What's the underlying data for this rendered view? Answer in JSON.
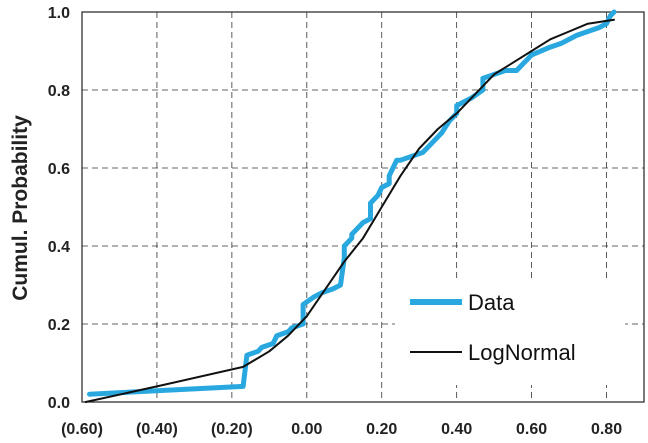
{
  "chart_data": {
    "type": "line",
    "title": "",
    "xlabel": "",
    "ylabel": "Cumul. Probability",
    "xlim": [
      -0.6,
      0.9
    ],
    "ylim": [
      0,
      1.0
    ],
    "x_ticks": [
      -0.6,
      -0.4,
      -0.2,
      0.0,
      0.2,
      0.4,
      0.6,
      0.8
    ],
    "x_tick_labels": [
      "(0.60)",
      "(0.40)",
      "(0.20)",
      "0.00",
      "0.20",
      "0.40",
      "0.60",
      "0.80"
    ],
    "y_ticks": [
      0,
      0.2,
      0.4,
      0.6,
      0.8,
      1.0
    ],
    "y_tick_labels": [
      "0.0",
      "0.2",
      "0.4",
      "0.6",
      "0.8",
      "1.0"
    ],
    "grid": true,
    "legend_position": "bottom-right",
    "series": [
      {
        "name": "Data",
        "color": "#29a8e0",
        "x": [
          -0.58,
          -0.17,
          -0.16,
          -0.13,
          -0.12,
          -0.09,
          -0.08,
          -0.05,
          -0.04,
          -0.01,
          -0.01,
          0.02,
          0.04,
          0.07,
          0.09,
          0.1,
          0.1,
          0.12,
          0.12,
          0.15,
          0.17,
          0.17,
          0.19,
          0.2,
          0.22,
          0.22,
          0.24,
          0.25,
          0.28,
          0.31,
          0.34,
          0.36,
          0.38,
          0.4,
          0.4,
          0.44,
          0.47,
          0.47,
          0.53,
          0.56,
          0.59,
          0.6,
          0.65,
          0.68,
          0.72,
          0.78,
          0.8,
          0.81,
          0.82
        ],
        "y": [
          0.02,
          0.04,
          0.12,
          0.13,
          0.14,
          0.15,
          0.17,
          0.18,
          0.19,
          0.2,
          0.25,
          0.27,
          0.28,
          0.29,
          0.3,
          0.37,
          0.4,
          0.42,
          0.43,
          0.46,
          0.47,
          0.51,
          0.53,
          0.55,
          0.56,
          0.58,
          0.62,
          0.62,
          0.63,
          0.64,
          0.67,
          0.69,
          0.72,
          0.74,
          0.76,
          0.78,
          0.8,
          0.83,
          0.85,
          0.85,
          0.88,
          0.89,
          0.91,
          0.92,
          0.94,
          0.96,
          0.97,
          0.99,
          1.0
        ]
      },
      {
        "name": "LogNormal",
        "color": "#111111",
        "x": [
          -0.59,
          -0.4,
          -0.17,
          -0.1,
          -0.05,
          0.0,
          0.05,
          0.1,
          0.15,
          0.2,
          0.25,
          0.3,
          0.35,
          0.4,
          0.45,
          0.5,
          0.55,
          0.6,
          0.65,
          0.7,
          0.75,
          0.82
        ],
        "y": [
          0.0,
          0.04,
          0.09,
          0.13,
          0.17,
          0.22,
          0.29,
          0.36,
          0.42,
          0.5,
          0.58,
          0.65,
          0.7,
          0.74,
          0.79,
          0.84,
          0.87,
          0.9,
          0.93,
          0.95,
          0.97,
          0.98
        ]
      }
    ]
  }
}
